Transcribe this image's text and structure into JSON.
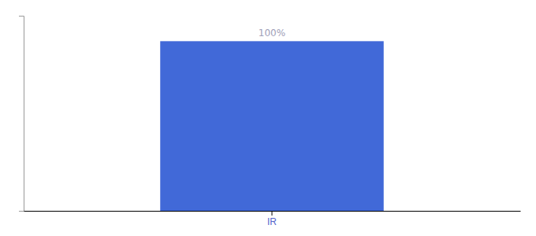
{
  "chart_data": {
    "type": "bar",
    "categories": [
      "IR"
    ],
    "values": [
      100
    ],
    "color": "#4169d8",
    "ylim": [
      0,
      115
    ],
    "data_labels": true,
    "value_labels": [
      "100%"
    ],
    "tick_labels": "x",
    "grid": false
  }
}
